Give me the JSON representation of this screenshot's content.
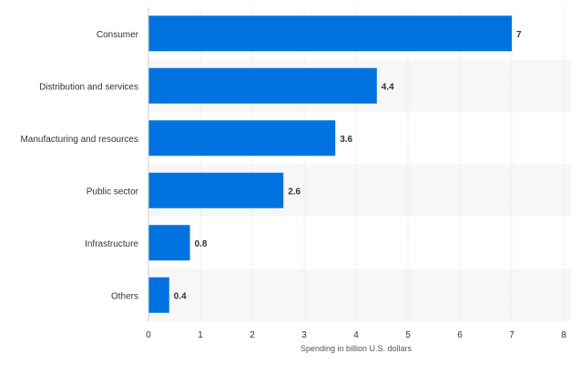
{
  "chart_data": {
    "type": "bar",
    "orientation": "horizontal",
    "categories": [
      "Consumer",
      "Distribution and services",
      "Manufacturing and resources",
      "Public sector",
      "Infrastructure",
      "Others"
    ],
    "values": [
      7,
      4.4,
      3.6,
      2.6,
      0.8,
      0.4
    ],
    "value_labels": [
      "7",
      "4.4",
      "3.6",
      "2.6",
      "0.8",
      "0.4"
    ],
    "title": "",
    "xlabel": "Spending in billion U.S. dollars",
    "ylabel": "",
    "xlim": [
      0,
      8
    ],
    "x_ticks": [
      "0",
      "1",
      "2",
      "3",
      "4",
      "5",
      "6",
      "7",
      "8"
    ],
    "grid": "vertical dotted gridlines",
    "legend": "none",
    "bar_color": "#0073e0",
    "alternate_row_color": "#f7f7f7"
  }
}
